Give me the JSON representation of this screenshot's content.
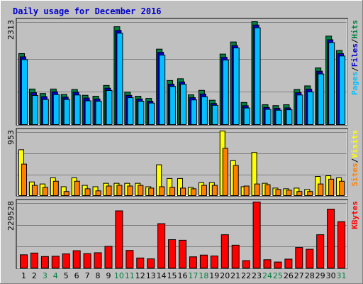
{
  "title": "Daily usage for December 2016",
  "colors": {
    "background": "#c0c0c0",
    "panel": "#c0c0c0",
    "title": "#0000cc",
    "hits": "#008040",
    "files": "#0000cc",
    "pages": "#00c0ff",
    "visits": "#ffff00",
    "sites": "#ff8000",
    "kbytes": "#ff0000",
    "weekend_label": "#008040"
  },
  "labels": {
    "hits_panel_max": "2313",
    "visits_panel_max": "953",
    "kbytes_panel_max": "229528",
    "pages": "Pages",
    "files": "Files",
    "hits": "Hits",
    "sites": "Sites",
    "visits": "Visits",
    "kbytes": "KBytes",
    "sep": "/"
  },
  "chart_data": {
    "type": "bar",
    "title": "Daily usage for December 2016",
    "categories": [
      "1",
      "2",
      "3",
      "4",
      "5",
      "6",
      "7",
      "8",
      "9",
      "10",
      "11",
      "12",
      "13",
      "14",
      "15",
      "16",
      "17",
      "18",
      "19",
      "20",
      "21",
      "22",
      "23",
      "24",
      "25",
      "26",
      "27",
      "28",
      "29",
      "30",
      "31"
    ],
    "weekend_days": [
      "3",
      "4",
      "10",
      "11",
      "17",
      "18",
      "24",
      "25",
      "31"
    ],
    "panels": [
      {
        "name": "hits_files_pages",
        "ylim": [
          0,
          2313
        ],
        "series": [
          {
            "name": "Hits",
            "values": [
              1600,
              810,
              710,
              810,
              690,
              800,
              670,
              650,
              890,
              2200,
              740,
              650,
              600,
              1700,
              1000,
              1040,
              680,
              780,
              560,
              1590,
              1860,
              510,
              2313,
              460,
              440,
              460,
              800,
              880,
              1280,
              1990,
              1670
            ]
          },
          {
            "name": "Files",
            "values": [
              1560,
              760,
              670,
              780,
              660,
              770,
              640,
              620,
              860,
              2150,
              700,
              620,
              570,
              1660,
              950,
              1000,
              650,
              730,
              520,
              1550,
              1810,
              470,
              2270,
              430,
              410,
              420,
              760,
              840,
              1240,
              1940,
              1630
            ]
          },
          {
            "name": "Pages",
            "values": [
              1530,
              730,
              640,
              750,
              640,
              740,
              610,
              600,
              840,
              2120,
              680,
              600,
              560,
              1630,
              930,
              980,
              630,
              700,
              510,
              1520,
              1790,
              450,
              2240,
              420,
              400,
              410,
              740,
              810,
              1210,
              1910,
              1610
            ]
          }
        ]
      },
      {
        "name": "sites_visits",
        "ylim": [
          0,
          953
        ],
        "series": [
          {
            "name": "Visits",
            "values": [
              680,
              210,
              180,
              270,
              140,
              270,
              160,
              140,
              190,
              190,
              190,
              190,
              140,
              460,
              260,
              260,
              130,
              200,
              200,
              953,
              520,
              140,
              640,
              190,
              120,
              110,
              120,
              100,
              290,
              300,
              270
            ]
          },
          {
            "name": "Sites",
            "values": [
              470,
              160,
              130,
              220,
              70,
              220,
              110,
              80,
              150,
              160,
              150,
              160,
              120,
              140,
              130,
              120,
              110,
              160,
              160,
              700,
              450,
              150,
              180,
              170,
              100,
              90,
              70,
              70,
              180,
              250,
              220
            ]
          }
        ]
      },
      {
        "name": "kbytes",
        "ylim": [
          0,
          229528
        ],
        "series": [
          {
            "name": "KBytes",
            "values": [
              48000,
              54000,
              42000,
              43000,
              51000,
              62000,
              52000,
              55000,
              77000,
              199000,
              63000,
              37000,
              34000,
              155000,
              100000,
              98000,
              41000,
              47000,
              44000,
              117000,
              81000,
              28000,
              229528,
              31000,
              23000,
              33000,
              73000,
              67000,
              117000,
              205000,
              162000
            ]
          }
        ]
      }
    ]
  }
}
